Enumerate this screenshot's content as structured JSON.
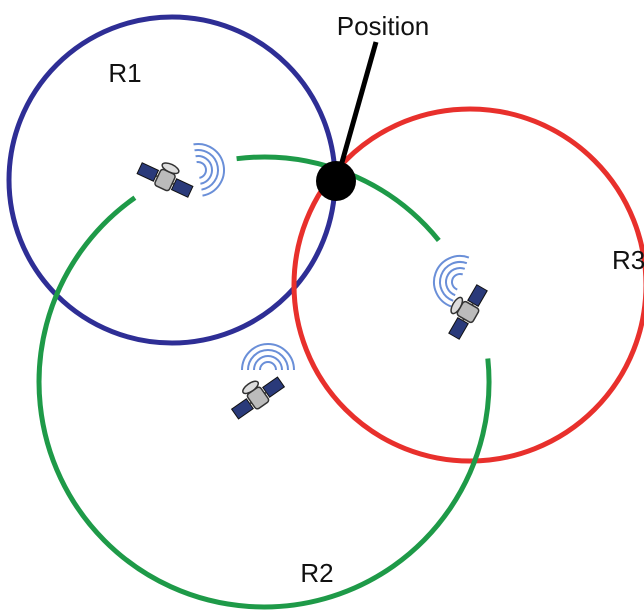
{
  "labels": {
    "position": "Position",
    "r1": "R1",
    "r2": "R2",
    "r3": "R3"
  }
}
